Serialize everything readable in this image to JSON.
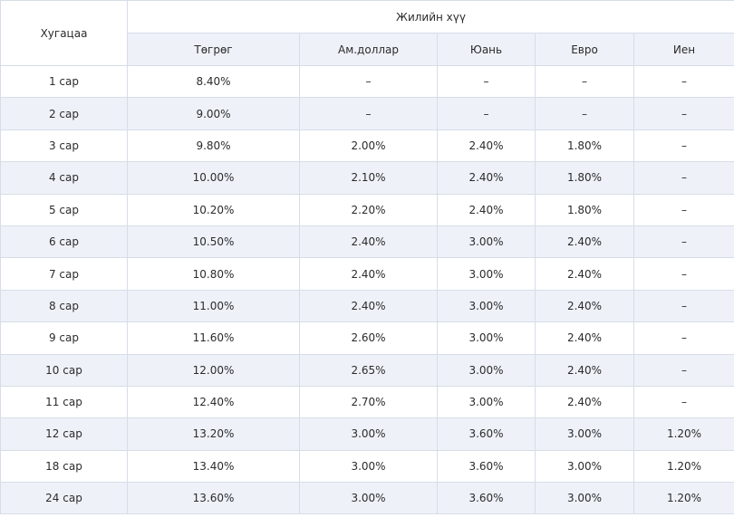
{
  "table": {
    "period_header": "Хугацаа",
    "rate_header": "Жилийн хүү",
    "currencies": [
      "Төгрөг",
      "Ам.доллар",
      "Юань",
      "Евро",
      "Иен"
    ],
    "rows": [
      [
        "1 сар",
        "8.40%",
        "–",
        "–",
        "–",
        "–"
      ],
      [
        "2 сар",
        "9.00%",
        "–",
        "–",
        "–",
        "–"
      ],
      [
        "3 сар",
        "9.80%",
        "2.00%",
        "2.40%",
        "1.80%",
        "–"
      ],
      [
        "4 сар",
        "10.00%",
        "2.10%",
        "2.40%",
        "1.80%",
        "–"
      ],
      [
        "5 сар",
        "10.20%",
        "2.20%",
        "2.40%",
        "1.80%",
        "–"
      ],
      [
        "6 сар",
        "10.50%",
        "2.40%",
        "3.00%",
        "2.40%",
        "–"
      ],
      [
        "7 сар",
        "10.80%",
        "2.40%",
        "3.00%",
        "2.40%",
        "–"
      ],
      [
        "8 сар",
        "11.00%",
        "2.40%",
        "3.00%",
        "2.40%",
        "–"
      ],
      [
        "9 сар",
        "11.60%",
        "2.60%",
        "3.00%",
        "2.40%",
        "–"
      ],
      [
        "10 сар",
        "12.00%",
        "2.65%",
        "3.00%",
        "2.40%",
        "–"
      ],
      [
        "11 сар",
        "12.40%",
        "2.70%",
        "3.00%",
        "2.40%",
        "–"
      ],
      [
        "12 сар",
        "13.20%",
        "3.00%",
        "3.60%",
        "3.00%",
        "1.20%"
      ],
      [
        "18 сар",
        "13.40%",
        "3.00%",
        "3.60%",
        "3.00%",
        "1.20%"
      ],
      [
        "24 сар",
        "13.60%",
        "3.00%",
        "3.60%",
        "3.00%",
        "1.20%"
      ]
    ]
  }
}
